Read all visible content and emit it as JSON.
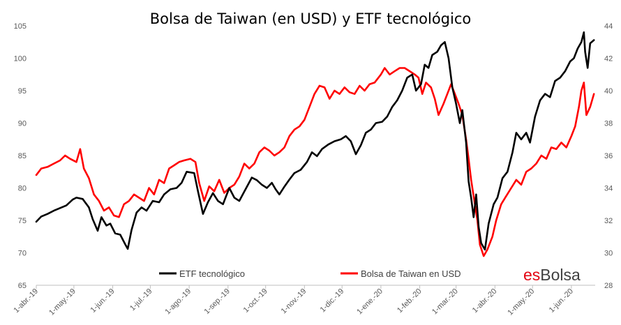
{
  "brand": {
    "part1": "es",
    "part2": "Bolsa"
  },
  "chart_data": {
    "type": "line",
    "title": "Bolsa de Taiwan (en USD) y ETF tecnológico",
    "left_axis": {
      "min": 65,
      "max": 105,
      "ticks": [
        65,
        70,
        75,
        80,
        85,
        90,
        95,
        100,
        105
      ]
    },
    "right_axis": {
      "min": 28,
      "max": 44,
      "ticks": [
        28,
        30,
        32,
        34,
        36,
        38,
        40,
        42,
        44
      ]
    },
    "x_labels": [
      "1-abr.-19",
      "1-may.-19",
      "1-jun.-19",
      "1-jul.-19",
      "1-ago.-19",
      "1-sep.-19",
      "1-oct.-19",
      "1-nov.-19",
      "1-dic.-19",
      "1-ene.-20",
      "1-feb.-20",
      "1-mar.-20",
      "1-abr.-20",
      "1-may.-20",
      "1-jun.-20"
    ],
    "x_range": [
      "2019-04-01",
      "2020-06-20"
    ],
    "grid": false,
    "legend": "bottom",
    "series": [
      {
        "name": "ETF tecnológico",
        "axis": "left",
        "color": "#000000",
        "points": [
          [
            "2019-04-01",
            74.8
          ],
          [
            "2019-04-05",
            75.6
          ],
          [
            "2019-04-10",
            76.0
          ],
          [
            "2019-04-15",
            76.5
          ],
          [
            "2019-04-20",
            76.9
          ],
          [
            "2019-04-25",
            77.3
          ],
          [
            "2019-04-30",
            78.2
          ],
          [
            "2019-05-03",
            78.5
          ],
          [
            "2019-05-08",
            78.3
          ],
          [
            "2019-05-13",
            77.0
          ],
          [
            "2019-05-16",
            75.2
          ],
          [
            "2019-05-20",
            73.4
          ],
          [
            "2019-05-23",
            75.5
          ],
          [
            "2019-05-27",
            74.2
          ],
          [
            "2019-05-30",
            74.5
          ],
          [
            "2019-06-03",
            73.0
          ],
          [
            "2019-06-07",
            72.8
          ],
          [
            "2019-06-11",
            71.3
          ],
          [
            "2019-06-13",
            70.6
          ],
          [
            "2019-06-16",
            73.5
          ],
          [
            "2019-06-20",
            76.2
          ],
          [
            "2019-06-24",
            77.0
          ],
          [
            "2019-06-28",
            76.5
          ],
          [
            "2019-07-03",
            78.0
          ],
          [
            "2019-07-08",
            77.8
          ],
          [
            "2019-07-12",
            79.0
          ],
          [
            "2019-07-17",
            79.8
          ],
          [
            "2019-07-22",
            80.0
          ],
          [
            "2019-07-26",
            80.8
          ],
          [
            "2019-07-30",
            82.5
          ],
          [
            "2019-08-05",
            82.3
          ],
          [
            "2019-08-08",
            79.5
          ],
          [
            "2019-08-12",
            76.0
          ],
          [
            "2019-08-16",
            77.8
          ],
          [
            "2019-08-20",
            79.2
          ],
          [
            "2019-08-24",
            78.0
          ],
          [
            "2019-08-28",
            77.5
          ],
          [
            "2019-09-02",
            80.0
          ],
          [
            "2019-09-06",
            78.5
          ],
          [
            "2019-09-10",
            78.0
          ],
          [
            "2019-09-15",
            79.8
          ],
          [
            "2019-09-20",
            81.6
          ],
          [
            "2019-09-24",
            81.2
          ],
          [
            "2019-09-28",
            80.5
          ],
          [
            "2019-10-02",
            80.0
          ],
          [
            "2019-10-06",
            80.8
          ],
          [
            "2019-10-09",
            79.8
          ],
          [
            "2019-10-12",
            79.0
          ],
          [
            "2019-10-16",
            80.2
          ],
          [
            "2019-10-20",
            81.3
          ],
          [
            "2019-10-24",
            82.3
          ],
          [
            "2019-10-29",
            82.8
          ],
          [
            "2019-11-03",
            84.0
          ],
          [
            "2019-11-07",
            85.5
          ],
          [
            "2019-11-11",
            84.9
          ],
          [
            "2019-11-15",
            86.0
          ],
          [
            "2019-11-20",
            86.7
          ],
          [
            "2019-11-25",
            87.2
          ],
          [
            "2019-11-30",
            87.5
          ],
          [
            "2019-12-04",
            88.0
          ],
          [
            "2019-12-08",
            87.2
          ],
          [
            "2019-12-12",
            85.2
          ],
          [
            "2019-12-16",
            86.6
          ],
          [
            "2019-12-20",
            88.5
          ],
          [
            "2019-12-24",
            89.0
          ],
          [
            "2019-12-28",
            90.0
          ],
          [
            "2020-01-02",
            90.2
          ],
          [
            "2020-01-06",
            91.0
          ],
          [
            "2020-01-10",
            92.5
          ],
          [
            "2020-01-14",
            93.5
          ],
          [
            "2020-01-18",
            95.0
          ],
          [
            "2020-01-22",
            97.0
          ],
          [
            "2020-01-26",
            97.5
          ],
          [
            "2020-01-29",
            95.0
          ],
          [
            "2020-02-02",
            96.0
          ],
          [
            "2020-02-05",
            99.0
          ],
          [
            "2020-02-08",
            98.5
          ],
          [
            "2020-02-11",
            100.5
          ],
          [
            "2020-02-15",
            101.0
          ],
          [
            "2020-02-18",
            102.0
          ],
          [
            "2020-02-21",
            102.5
          ],
          [
            "2020-02-24",
            100.0
          ],
          [
            "2020-02-27",
            95.5
          ],
          [
            "2020-03-01",
            93.0
          ],
          [
            "2020-03-04",
            90.0
          ],
          [
            "2020-03-06",
            92.0
          ],
          [
            "2020-03-09",
            87.0
          ],
          [
            "2020-03-11",
            81.0
          ],
          [
            "2020-03-13",
            78.5
          ],
          [
            "2020-03-15",
            75.5
          ],
          [
            "2020-03-17",
            79.0
          ],
          [
            "2020-03-19",
            74.0
          ],
          [
            "2020-03-21",
            71.5
          ],
          [
            "2020-03-24",
            70.5
          ],
          [
            "2020-03-27",
            74.5
          ],
          [
            "2020-03-31",
            77.5
          ],
          [
            "2020-04-03",
            78.5
          ],
          [
            "2020-04-07",
            81.5
          ],
          [
            "2020-04-11",
            82.5
          ],
          [
            "2020-04-15",
            85.5
          ],
          [
            "2020-04-18",
            88.5
          ],
          [
            "2020-04-22",
            87.5
          ],
          [
            "2020-04-26",
            88.5
          ],
          [
            "2020-04-29",
            87.0
          ],
          [
            "2020-05-03",
            91.0
          ],
          [
            "2020-05-07",
            93.5
          ],
          [
            "2020-05-11",
            94.5
          ],
          [
            "2020-05-15",
            94.0
          ],
          [
            "2020-05-19",
            96.5
          ],
          [
            "2020-05-23",
            97.0
          ],
          [
            "2020-05-27",
            98.0
          ],
          [
            "2020-05-31",
            99.5
          ],
          [
            "2020-06-03",
            100.0
          ],
          [
            "2020-06-06",
            101.5
          ],
          [
            "2020-06-09",
            102.5
          ],
          [
            "2020-06-11",
            104.0
          ],
          [
            "2020-06-12",
            101.0
          ],
          [
            "2020-06-14",
            98.5
          ],
          [
            "2020-06-16",
            102.3
          ],
          [
            "2020-06-19",
            102.8
          ]
        ]
      },
      {
        "name": "Bolsa de Taiwan en USD",
        "axis": "right",
        "color": "#ff0000",
        "points": [
          [
            "2019-04-01",
            34.8
          ],
          [
            "2019-04-05",
            35.2
          ],
          [
            "2019-04-10",
            35.3
          ],
          [
            "2019-04-15",
            35.5
          ],
          [
            "2019-04-20",
            35.7
          ],
          [
            "2019-04-24",
            36.0
          ],
          [
            "2019-04-28",
            35.8
          ],
          [
            "2019-05-03",
            35.6
          ],
          [
            "2019-05-06",
            36.4
          ],
          [
            "2019-05-09",
            35.2
          ],
          [
            "2019-05-13",
            34.6
          ],
          [
            "2019-05-17",
            33.6
          ],
          [
            "2019-05-21",
            33.2
          ],
          [
            "2019-05-25",
            32.6
          ],
          [
            "2019-05-29",
            32.8
          ],
          [
            "2019-06-02",
            32.3
          ],
          [
            "2019-06-06",
            32.2
          ],
          [
            "2019-06-10",
            33.0
          ],
          [
            "2019-06-14",
            33.2
          ],
          [
            "2019-06-18",
            33.6
          ],
          [
            "2019-06-22",
            33.4
          ],
          [
            "2019-06-26",
            33.2
          ],
          [
            "2019-06-30",
            34.0
          ],
          [
            "2019-07-04",
            33.6
          ],
          [
            "2019-07-08",
            34.5
          ],
          [
            "2019-07-12",
            34.3
          ],
          [
            "2019-07-16",
            35.2
          ],
          [
            "2019-07-20",
            35.4
          ],
          [
            "2019-07-24",
            35.6
          ],
          [
            "2019-07-28",
            35.7
          ],
          [
            "2019-08-02",
            35.8
          ],
          [
            "2019-08-06",
            35.6
          ],
          [
            "2019-08-09",
            34.3
          ],
          [
            "2019-08-13",
            33.2
          ],
          [
            "2019-08-17",
            34.1
          ],
          [
            "2019-08-21",
            33.8
          ],
          [
            "2019-08-25",
            34.5
          ],
          [
            "2019-08-29",
            33.7
          ],
          [
            "2019-09-02",
            34.0
          ],
          [
            "2019-09-06",
            34.2
          ],
          [
            "2019-09-10",
            34.7
          ],
          [
            "2019-09-14",
            35.5
          ],
          [
            "2019-09-18",
            35.2
          ],
          [
            "2019-09-22",
            35.5
          ],
          [
            "2019-09-26",
            36.2
          ],
          [
            "2019-09-30",
            36.5
          ],
          [
            "2019-10-04",
            36.3
          ],
          [
            "2019-10-08",
            36.0
          ],
          [
            "2019-10-12",
            36.2
          ],
          [
            "2019-10-16",
            36.5
          ],
          [
            "2019-10-20",
            37.2
          ],
          [
            "2019-10-24",
            37.6
          ],
          [
            "2019-10-28",
            37.8
          ],
          [
            "2019-11-01",
            38.2
          ],
          [
            "2019-11-05",
            39.0
          ],
          [
            "2019-11-09",
            39.8
          ],
          [
            "2019-11-13",
            40.3
          ],
          [
            "2019-11-17",
            40.2
          ],
          [
            "2019-11-21",
            39.5
          ],
          [
            "2019-11-25",
            40.0
          ],
          [
            "2019-11-29",
            39.8
          ],
          [
            "2019-12-03",
            40.2
          ],
          [
            "2019-12-07",
            39.9
          ],
          [
            "2019-12-11",
            39.8
          ],
          [
            "2019-12-15",
            40.3
          ],
          [
            "2019-12-19",
            40.0
          ],
          [
            "2019-12-23",
            40.4
          ],
          [
            "2019-12-27",
            40.5
          ],
          [
            "2020-01-01",
            41.0
          ],
          [
            "2020-01-04",
            41.4
          ],
          [
            "2020-01-08",
            41.0
          ],
          [
            "2020-01-12",
            41.2
          ],
          [
            "2020-01-16",
            41.4
          ],
          [
            "2020-01-20",
            41.4
          ],
          [
            "2020-01-24",
            41.2
          ],
          [
            "2020-01-28",
            41.0
          ],
          [
            "2020-01-31",
            40.8
          ],
          [
            "2020-02-03",
            39.8
          ],
          [
            "2020-02-06",
            40.5
          ],
          [
            "2020-02-10",
            40.2
          ],
          [
            "2020-02-13",
            39.5
          ],
          [
            "2020-02-16",
            38.5
          ],
          [
            "2020-02-20",
            39.2
          ],
          [
            "2020-02-23",
            39.8
          ],
          [
            "2020-02-26",
            40.4
          ],
          [
            "2020-02-29",
            39.8
          ],
          [
            "2020-03-03",
            39.2
          ],
          [
            "2020-03-06",
            38.5
          ],
          [
            "2020-03-09",
            37.0
          ],
          [
            "2020-03-11",
            35.8
          ],
          [
            "2020-03-13",
            34.5
          ],
          [
            "2020-03-16",
            33.0
          ],
          [
            "2020-03-18",
            32.0
          ],
          [
            "2020-03-20",
            30.5
          ],
          [
            "2020-03-23",
            29.8
          ],
          [
            "2020-03-26",
            30.2
          ],
          [
            "2020-03-30",
            31.0
          ],
          [
            "2020-04-02",
            32.0
          ],
          [
            "2020-04-06",
            33.0
          ],
          [
            "2020-04-10",
            33.5
          ],
          [
            "2020-04-14",
            34.0
          ],
          [
            "2020-04-18",
            34.5
          ],
          [
            "2020-04-22",
            34.2
          ],
          [
            "2020-04-26",
            35.0
          ],
          [
            "2020-04-30",
            35.2
          ],
          [
            "2020-05-04",
            35.5
          ],
          [
            "2020-05-08",
            36.0
          ],
          [
            "2020-05-12",
            35.8
          ],
          [
            "2020-05-16",
            36.5
          ],
          [
            "2020-05-20",
            36.4
          ],
          [
            "2020-05-24",
            36.8
          ],
          [
            "2020-05-28",
            36.5
          ],
          [
            "2020-06-01",
            37.2
          ],
          [
            "2020-06-04",
            37.8
          ],
          [
            "2020-06-07",
            39.0
          ],
          [
            "2020-06-09",
            40.0
          ],
          [
            "2020-06-11",
            40.5
          ],
          [
            "2020-06-13",
            38.5
          ],
          [
            "2020-06-16",
            39.0
          ],
          [
            "2020-06-19",
            39.8
          ]
        ]
      }
    ]
  }
}
